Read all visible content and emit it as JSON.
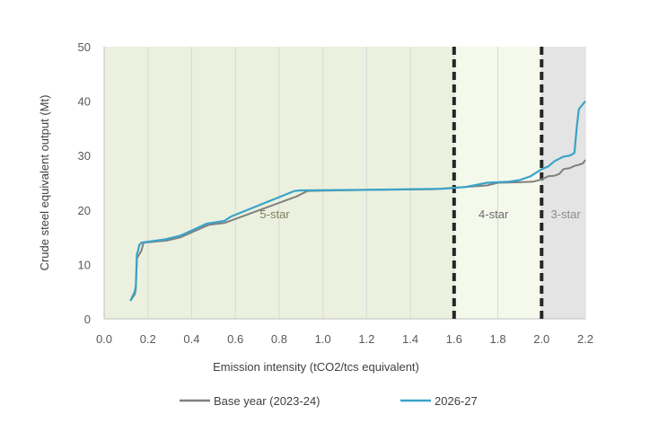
{
  "chart_data": {
    "type": "line",
    "title": "",
    "xlabel": "Emission intensity (tCO2/tcs equivalent)",
    "ylabel": "Crude steel equivalent  output (Mt)",
    "xlim": [
      0.0,
      2.2
    ],
    "ylim": [
      0,
      50
    ],
    "xticks": [
      "0.0",
      "0.2",
      "0.4",
      "0.6",
      "0.8",
      "1.0",
      "1.2",
      "1.4",
      "1.6",
      "1.8",
      "2.0",
      "2.2"
    ],
    "xtick_values": [
      0.0,
      0.2,
      0.4,
      0.6,
      0.8,
      1.0,
      1.2,
      1.4,
      1.6,
      1.8,
      2.0,
      2.2
    ],
    "yticks": [
      "0",
      "10",
      "20",
      "30",
      "40",
      "50"
    ],
    "ytick_values": [
      0,
      10,
      20,
      30,
      40,
      50
    ],
    "grid": "vertical",
    "legend_position": "bottom",
    "zones": [
      {
        "label": "5-star",
        "from": 0.0,
        "to": 1.6,
        "color": "#ebf1de",
        "label_x": 0.78,
        "label_y": 18.5,
        "label_color": "#7f7f5f"
      },
      {
        "label": "4-star",
        "from": 1.6,
        "to": 2.0,
        "color": "#f5f9ec",
        "label_x": 1.78,
        "label_y": 18.5,
        "label_color": "#6b6b6b"
      },
      {
        "label": "3-star",
        "from": 2.0,
        "to": 2.2,
        "color": "#e4e4e4",
        "label_x": 2.11,
        "label_y": 18.5,
        "label_color": "#8c8c8c"
      }
    ],
    "thresholds": [
      1.6,
      2.0
    ],
    "series": [
      {
        "name": "Base year (2023-24)",
        "color": "#808080",
        "x": [
          0.12,
          0.14,
          0.145,
          0.15,
          0.155,
          0.17,
          0.18,
          0.29,
          0.35,
          0.48,
          0.55,
          0.88,
          0.93,
          1.2,
          1.5,
          1.6,
          1.75,
          1.8,
          1.9,
          1.96,
          2.0,
          2.03,
          2.06,
          2.08,
          2.1,
          2.13,
          2.15,
          2.17,
          2.19,
          2.2
        ],
        "y": [
          3.3,
          4.5,
          5.5,
          11,
          11.5,
          12.5,
          14,
          14.4,
          15,
          17.3,
          17.6,
          22.5,
          23.5,
          23.7,
          23.8,
          24.1,
          24.5,
          25,
          25.1,
          25.2,
          25.6,
          26.2,
          26.3,
          26.6,
          27.5,
          27.7,
          28.1,
          28.3,
          28.6,
          29.2
        ]
      },
      {
        "name": "2026-27",
        "color": "#3aa3c8",
        "x": [
          0.12,
          0.14,
          0.145,
          0.15,
          0.155,
          0.16,
          0.17,
          0.28,
          0.35,
          0.47,
          0.55,
          0.58,
          0.87,
          0.9,
          1.2,
          1.55,
          1.65,
          1.75,
          1.8,
          1.85,
          1.9,
          1.95,
          2.0,
          2.03,
          2.06,
          2.1,
          2.13,
          2.15,
          2.16,
          2.17,
          2.19,
          2.2
        ],
        "y": [
          3.3,
          5,
          6,
          12,
          12.5,
          13.5,
          14,
          14.6,
          15.3,
          17.5,
          18,
          18.8,
          23.5,
          23.6,
          23.7,
          23.9,
          24.2,
          25,
          25.1,
          25.2,
          25.5,
          26.2,
          27.5,
          28,
          29,
          29.8,
          30,
          30.5,
          35,
          38.5,
          39.5,
          40
        ]
      }
    ]
  }
}
